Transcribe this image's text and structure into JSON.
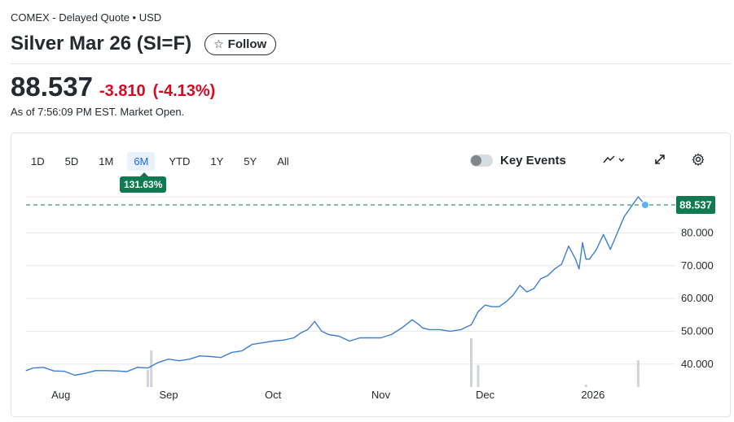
{
  "header": {
    "exchange_line": "COMEX - Delayed Quote • USD",
    "title": "Silver Mar 26 (SI=F)",
    "follow_label": "Follow"
  },
  "quote": {
    "price": "88.537",
    "change": "-3.810",
    "change_pct": "(-4.13%)",
    "as_of": "As of 7:56:09 PM EST. Market Open.",
    "price_color": "#232a31",
    "negative_color": "#d60a22"
  },
  "controls": {
    "ranges": [
      "1D",
      "5D",
      "1M",
      "6M",
      "YTD",
      "1Y",
      "5Y",
      "All"
    ],
    "active_range": "6M",
    "performance_badge": "131.63%",
    "key_events_label": "Key Events",
    "key_events_on": false,
    "chart_type_icon": "mountain-chart-icon",
    "expand_icon": "expand-icon",
    "settings_icon": "gear-icon"
  },
  "chart_data": {
    "type": "line",
    "x": [
      "2025-07-22",
      "2025-07-24",
      "2025-07-27",
      "2025-07-30",
      "2025-08-02",
      "2025-08-05",
      "2025-08-08",
      "2025-08-11",
      "2025-08-14",
      "2025-08-17",
      "2025-08-20",
      "2025-08-23",
      "2025-08-26",
      "2025-08-29",
      "2025-09-01",
      "2025-09-04",
      "2025-09-07",
      "2025-09-10",
      "2025-09-13",
      "2025-09-16",
      "2025-09-19",
      "2025-09-22",
      "2025-09-25",
      "2025-09-28",
      "2025-10-01",
      "2025-10-04",
      "2025-10-07",
      "2025-10-09",
      "2025-10-11",
      "2025-10-13",
      "2025-10-15",
      "2025-10-17",
      "2025-10-20",
      "2025-10-23",
      "2025-10-26",
      "2025-10-29",
      "2025-11-01",
      "2025-11-04",
      "2025-11-07",
      "2025-11-10",
      "2025-11-12",
      "2025-11-13",
      "2025-11-15",
      "2025-11-18",
      "2025-11-21",
      "2025-11-24",
      "2025-11-27",
      "2025-11-29",
      "2025-12-01",
      "2025-12-03",
      "2025-12-05",
      "2025-12-07",
      "2025-12-09",
      "2025-12-11",
      "2025-12-13",
      "2025-12-15",
      "2025-12-17",
      "2025-12-19",
      "2025-12-21",
      "2025-12-23",
      "2025-12-25",
      "2025-12-27",
      "2025-12-28",
      "2025-12-29",
      "2025-12-30",
      "2025-12-31",
      "2026-01-02",
      "2026-01-04",
      "2026-01-06",
      "2026-01-08",
      "2026-01-10",
      "2026-01-12",
      "2026-01-14",
      "2026-01-16"
    ],
    "series": [
      {
        "values": [
          38.0,
          38.8,
          39.0,
          37.9,
          37.8,
          36.6,
          37.2,
          38.0,
          38.0,
          37.9,
          37.7,
          39.0,
          38.8,
          40.5,
          41.5,
          41.0,
          41.5,
          42.5,
          42.3,
          42.0,
          43.5,
          44.0,
          46.0,
          46.5,
          47.0,
          47.3,
          48.0,
          49.5,
          50.5,
          53.0,
          50.0,
          49.0,
          48.5,
          47.0,
          48.0,
          48.0,
          48.0,
          49.0,
          51.0,
          53.5,
          52.0,
          51.0,
          50.5,
          50.5,
          50.0,
          50.5,
          52.0,
          56.0,
          58.0,
          57.5,
          57.5,
          59.0,
          61.0,
          64.0,
          62.0,
          63.0,
          66.0,
          67.0,
          69.0,
          70.5,
          76.0,
          72.0,
          69.0,
          77.0,
          72.0,
          72.0,
          75.0,
          79.5,
          75.0,
          80.0,
          85.0,
          88.0,
          91.0,
          88.537
        ]
      }
    ],
    "volume_bars": [
      {
        "x": "2025-08-26",
        "value": 0.35
      },
      {
        "x": "2025-08-27",
        "value": 0.75
      },
      {
        "x": "2025-11-27",
        "value": 1.0
      },
      {
        "x": "2025-11-29",
        "value": 0.45
      },
      {
        "x": "2025-12-30",
        "value": 0.05
      },
      {
        "x": "2026-01-14",
        "value": 0.55
      }
    ],
    "xticks": [
      {
        "x": "2025-08-01",
        "label": "Aug"
      },
      {
        "x": "2025-09-01",
        "label": "Sep"
      },
      {
        "x": "2025-10-01",
        "label": "Oct"
      },
      {
        "x": "2025-11-01",
        "label": "Nov"
      },
      {
        "x": "2025-12-01",
        "label": "Dec"
      },
      {
        "x": "2026-01-01",
        "label": "2026"
      }
    ],
    "yticks": [
      "40.000",
      "50.000",
      "60.000",
      "70.000",
      "80.000"
    ],
    "ylim": [
      33,
      93
    ],
    "current_value": 88.537,
    "current_label": "88.537",
    "line_color": "#3b7dd8",
    "reference_line_color": "#0f7a50",
    "grid": true
  }
}
